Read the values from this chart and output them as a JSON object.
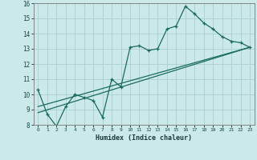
{
  "xlabel": "Humidex (Indice chaleur)",
  "bg_color": "#cce9e9",
  "grid_color": "#aacfcf",
  "line_color": "#1a6b5a",
  "xlim": [
    -0.5,
    23.5
  ],
  "ylim": [
    8,
    16
  ],
  "xticks": [
    0,
    1,
    2,
    3,
    4,
    5,
    6,
    7,
    8,
    9,
    10,
    11,
    12,
    13,
    14,
    15,
    16,
    17,
    18,
    19,
    20,
    21,
    22,
    23
  ],
  "yticks": [
    8,
    9,
    10,
    11,
    12,
    13,
    14,
    15,
    16
  ],
  "series1_x": [
    0,
    1,
    2,
    3,
    4,
    5,
    6,
    7,
    8,
    9,
    10,
    11,
    12,
    13,
    14,
    15,
    16,
    17,
    18,
    19,
    20,
    21,
    22,
    23
  ],
  "series1_y": [
    10.3,
    8.7,
    7.9,
    9.2,
    10.0,
    9.8,
    9.6,
    8.5,
    11.0,
    10.5,
    13.1,
    13.2,
    12.9,
    13.0,
    14.3,
    14.5,
    15.8,
    15.3,
    14.7,
    14.3,
    13.8,
    13.5,
    13.4,
    13.1
  ],
  "series2_x": [
    0,
    23
  ],
  "series2_y": [
    8.8,
    13.1
  ],
  "series3_x": [
    0,
    23
  ],
  "series3_y": [
    9.2,
    13.1
  ]
}
